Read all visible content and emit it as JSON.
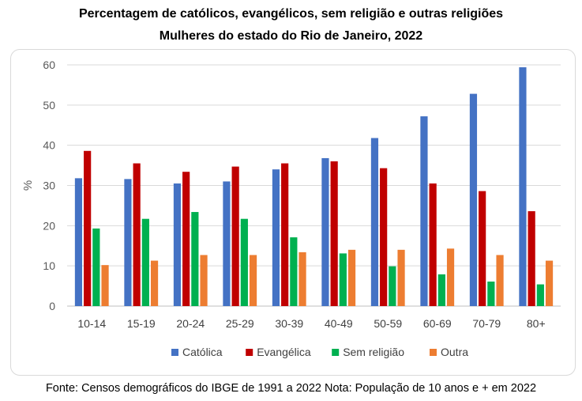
{
  "chart_data": {
    "type": "bar",
    "title": "Percentagem de católicos, evangélicos, sem religião e outras religiões",
    "subtitle": "Mulheres do estado do Rio de Janeiro, 2022",
    "xlabel": "",
    "ylabel": "%",
    "ylim": [
      0,
      60
    ],
    "yticks": [
      0,
      10,
      20,
      30,
      40,
      50,
      60
    ],
    "grid": true,
    "legend_position": "bottom",
    "categories": [
      "10-14",
      "15-19",
      "20-24",
      "25-29",
      "30-39",
      "40-49",
      "50-59",
      "60-69",
      "70-79",
      "80+"
    ],
    "series": [
      {
        "name": "Católica",
        "color": "#4472C4",
        "values": [
          31.8,
          31.6,
          30.5,
          31.0,
          34.0,
          36.8,
          41.8,
          47.2,
          52.8,
          59.4
        ]
      },
      {
        "name": "Evangélica",
        "color": "#C00000",
        "values": [
          38.6,
          35.5,
          33.4,
          34.7,
          35.5,
          36.0,
          34.3,
          30.5,
          28.6,
          23.6
        ]
      },
      {
        "name": "Sem religião",
        "color": "#00B050",
        "values": [
          19.3,
          21.7,
          23.4,
          21.7,
          17.1,
          13.1,
          9.9,
          7.9,
          6.1,
          5.4
        ]
      },
      {
        "name": "Outra",
        "color": "#ED7D31",
        "values": [
          10.2,
          11.3,
          12.7,
          12.7,
          13.4,
          14.0,
          14.0,
          14.3,
          12.7,
          11.3
        ]
      }
    ]
  },
  "source_note": "Fonte: Censos demográficos do IBGE de 1991 a 2022 Nota: População de 10 anos e + em 2022"
}
